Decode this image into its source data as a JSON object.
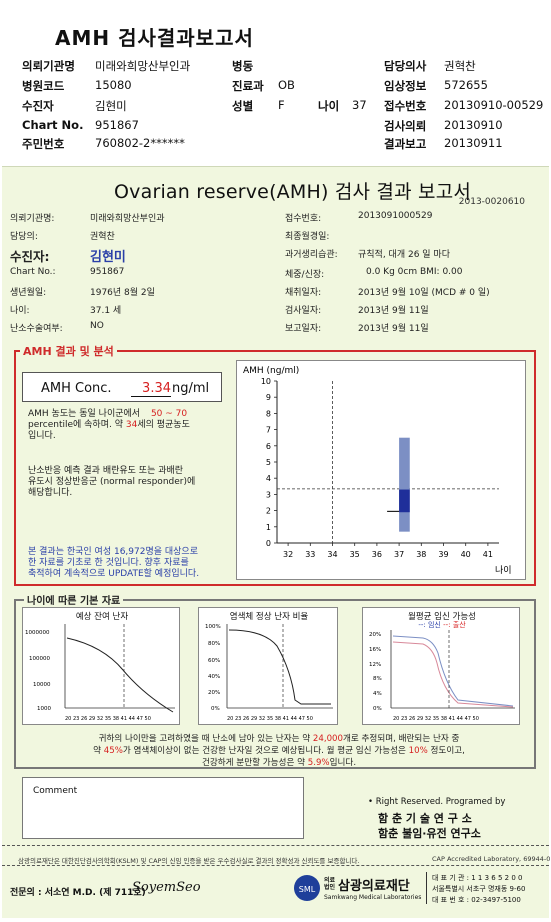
{
  "header": {
    "title": "AMH 검사결과보고서",
    "rows": [
      {
        "l1": "의뢰기관명",
        "v1": "미래와희망산부인과",
        "l2": "병동",
        "v2": "",
        "l3": "담당의사",
        "v3": "권혁찬"
      },
      {
        "l1": "병원코드",
        "v1": "15080",
        "l2": "진료과",
        "v2": "OB",
        "l3": "임상정보",
        "v3": "572655"
      },
      {
        "l1": "수진자",
        "v1": "김현미",
        "l2": "성별",
        "v2": "F",
        "l2b": "나이",
        "v2b": "37",
        "l3": "접수번호",
        "v3": "20130910-00529"
      },
      {
        "l1": "Chart No.",
        "v1": "951867",
        "l2": "",
        "v2": "",
        "l3": "검사의뢰",
        "v3": "20130910"
      },
      {
        "l1": "주민번호",
        "v1": "760802-2******",
        "l2": "",
        "v2": "",
        "l3": "결과보고",
        "v3": "20130911"
      }
    ]
  },
  "sheet": {
    "title": "Ovarian reserve(AMH) 검사 결과 보고서",
    "doc_no": "2013-0020610",
    "left_info": [
      {
        "label": "의뢰기관명:",
        "value": "미래와희망산부인과"
      },
      {
        "label": "담당의:",
        "value": "권혁찬"
      },
      {
        "label": "수진자:",
        "value": "김현미"
      },
      {
        "label": "Chart No.:",
        "value": "951867"
      },
      {
        "label": "생년월일:",
        "value": "1976년 8월 2일"
      },
      {
        "label": "나이:",
        "value": "37.1 세"
      },
      {
        "label": "난소수술여부:",
        "value": "NO"
      }
    ],
    "right_info": [
      {
        "label": "접수번호:",
        "value": "2013091000529"
      },
      {
        "label": "최종월경일:",
        "value": ""
      },
      {
        "label": "과거생리습관:",
        "value": "규칙적, 대개     26 일 마다"
      },
      {
        "label": "체중/신장:",
        "value": "0.0 Kg         0cm    BMI:     0.00"
      },
      {
        "label": "채취일자:",
        "value": "2013년 9월 10일   (MCD #  0 일)"
      },
      {
        "label": "검사일자:",
        "value": "2013년 9월 11일"
      },
      {
        "label": "보고일자:",
        "value": "2013년 9월 11일"
      }
    ]
  },
  "analysis": {
    "section_label": "AMH 결과 및 분석",
    "amh_label": "AMH Conc.",
    "amh_value": "3.34",
    "amh_unit": "ng/ml",
    "p1_a": "AMH 농도는 동일 나이군에서",
    "p1_pct": "50 ~  70",
    "p1_b": "percentile에 속하며. 약",
    "p1_age": "34",
    "p1_c": "세의 평균농도",
    "p1_d": "입니다.",
    "p2": [
      "난소반응 예측 결과 배란유도 또는 과배란",
      "유도시 정상반응군 (normal responder)에",
      "해당합니다."
    ],
    "p3": [
      "본 결과는 한국인 여성 16,972명을 대상으로",
      "한 자료를 기초로 한 것입니다. 향후 자료를",
      "축적하여 계속적으로 UPDATE할 예정입니다."
    ]
  },
  "chart_data": {
    "type": "box",
    "title": "",
    "ylabel": "AMH (ng/ml)",
    "xlabel": "나이",
    "x_ticks": [
      32,
      33,
      34,
      35,
      36,
      37,
      38,
      39,
      40,
      41
    ],
    "y_ticks": [
      0,
      1,
      2,
      3,
      4,
      5,
      6,
      7,
      8,
      9,
      10
    ],
    "xlim": [
      31.5,
      41.5
    ],
    "ylim": [
      0,
      10
    ],
    "patient_age": 37.1,
    "patient_amh": 3.34,
    "age_band_min": 37,
    "age_band_max": 37.3,
    "outer_range": [
      0.7,
      6.5
    ],
    "iqr_range": [
      1.9,
      3.3
    ],
    "median": 1.95,
    "reference_age": 34
  },
  "base_data": {
    "section_label": "나이에 따른 기본 자료",
    "charts": [
      {
        "title": "예상 잔여 난자",
        "y_ticks": [
          "1000000",
          "100000",
          "10000",
          "1000"
        ],
        "x_ticks": "20 23 26 29 32 35 38 41 44 47 50"
      },
      {
        "title": "염색체 정상 난자 비율",
        "y_ticks": [
          "100%",
          "80%",
          "60%",
          "40%",
          "20%",
          "0%"
        ],
        "x_ticks": "20 23 26 29 32 35 38 41 44 47 50"
      },
      {
        "title": "월평균 임신 가능성",
        "legend_a": "임신",
        "legend_b": "출산",
        "y_ticks": [
          "20%",
          "16%",
          "12%",
          "8%",
          "4%",
          "0%"
        ],
        "x_ticks": "20 23 26 29 32 35 38 41 44 47 50"
      }
    ],
    "summary": {
      "a": "귀하의 나이만을 고려하였을 때 난소에 남아 있는 난자는 약",
      "eggs": "24,000",
      "b": "개로 추정되며, 배란되는 난자 중",
      "c": "약",
      "pct": "45%",
      "d": "가 염색체이상이 없는 건강한 난자일 것으로 예상됩니다. 월 평균 임신 가능성은",
      "preg": "10%",
      "e": "정도이고,",
      "f": "건강하게 분만할 가능성은 약",
      "birth": "5.9%",
      "g": "입니다."
    }
  },
  "comment": {
    "label": "Comment"
  },
  "rights": {
    "line1": "• Right Reserved. Programed by",
    "line2": "함 춘  기 술  연 구 소",
    "line3": "함춘 불임·유전 연구소"
  },
  "footer": {
    "note": "삼광의료재단은 대한진단검사의학회(KSLM) 및 CAP의 신임 인증을 받은 우수검사실로 결과의 정확성과 신뢰도를 보증합니다.",
    "cap": "CAP Accredited Laboratory, 69944-01",
    "doctor_label": "전문의 : 서소연 M.D. (제 711호)",
    "signature": "SoyemSeo",
    "org_prefix": "의료법인",
    "org_name": "삼광의료재단",
    "org_en": "Samkwang Medical Laboratories",
    "contact1": "대 표 기 관 : 1 1 3 6 5 2 0 0",
    "contact2": "서울특별시 서초구 명재동 9-60",
    "contact3": "대 표 번 호 : 02-3497-5100"
  },
  "colors": {
    "accent": "#cf2b2b",
    "box_blue": "#1f2f9a",
    "box_light": "#7c8fc4",
    "sheet_bg": "#f1f7df"
  }
}
